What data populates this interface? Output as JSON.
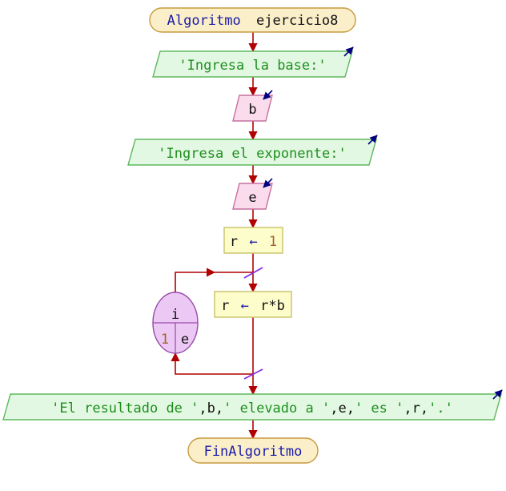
{
  "flowchart": {
    "start": {
      "keyword": "Algoritmo",
      "name": "ejercicio8"
    },
    "output_1": {
      "text": "'Ingresa la base:'"
    },
    "input_1": {
      "var": "b"
    },
    "output_2": {
      "text": "'Ingresa el exponente:'"
    },
    "input_2": {
      "var": "e"
    },
    "assign_1": {
      "target": "r",
      "arrow": "←",
      "value": "1"
    },
    "loop": {
      "var": "i",
      "from": "1",
      "to": "e"
    },
    "assign_2": {
      "target": "r",
      "arrow": "←",
      "value": "r*b"
    },
    "output_3": {
      "s1": "'El resultado de '",
      "c1": ",",
      "v1": "b",
      "c2": ",",
      "s2": "' elevado a '",
      "c3": ",",
      "v2": "e",
      "c4": ",",
      "s3": "' es '",
      "c5": ",",
      "v3": "r",
      "c6": ",",
      "s4": "'.'"
    },
    "end": {
      "keyword": "FinAlgoritmo"
    }
  },
  "colors": {
    "terminal_fill": "#fbefc9",
    "terminal_stroke": "#c89a3e",
    "output_fill": "#e2f8e2",
    "output_stroke": "#5fb85f",
    "input_fill": "#fbdcec",
    "input_stroke": "#c86f9e",
    "process_fill": "#fdfccb",
    "process_stroke": "#c8c26a",
    "loop_fill": "#ecc8f4",
    "loop_stroke": "#9a4aaa",
    "arrow": "#b00000",
    "io_indicator": "#000080",
    "loop_mark": "#8a2be2"
  }
}
